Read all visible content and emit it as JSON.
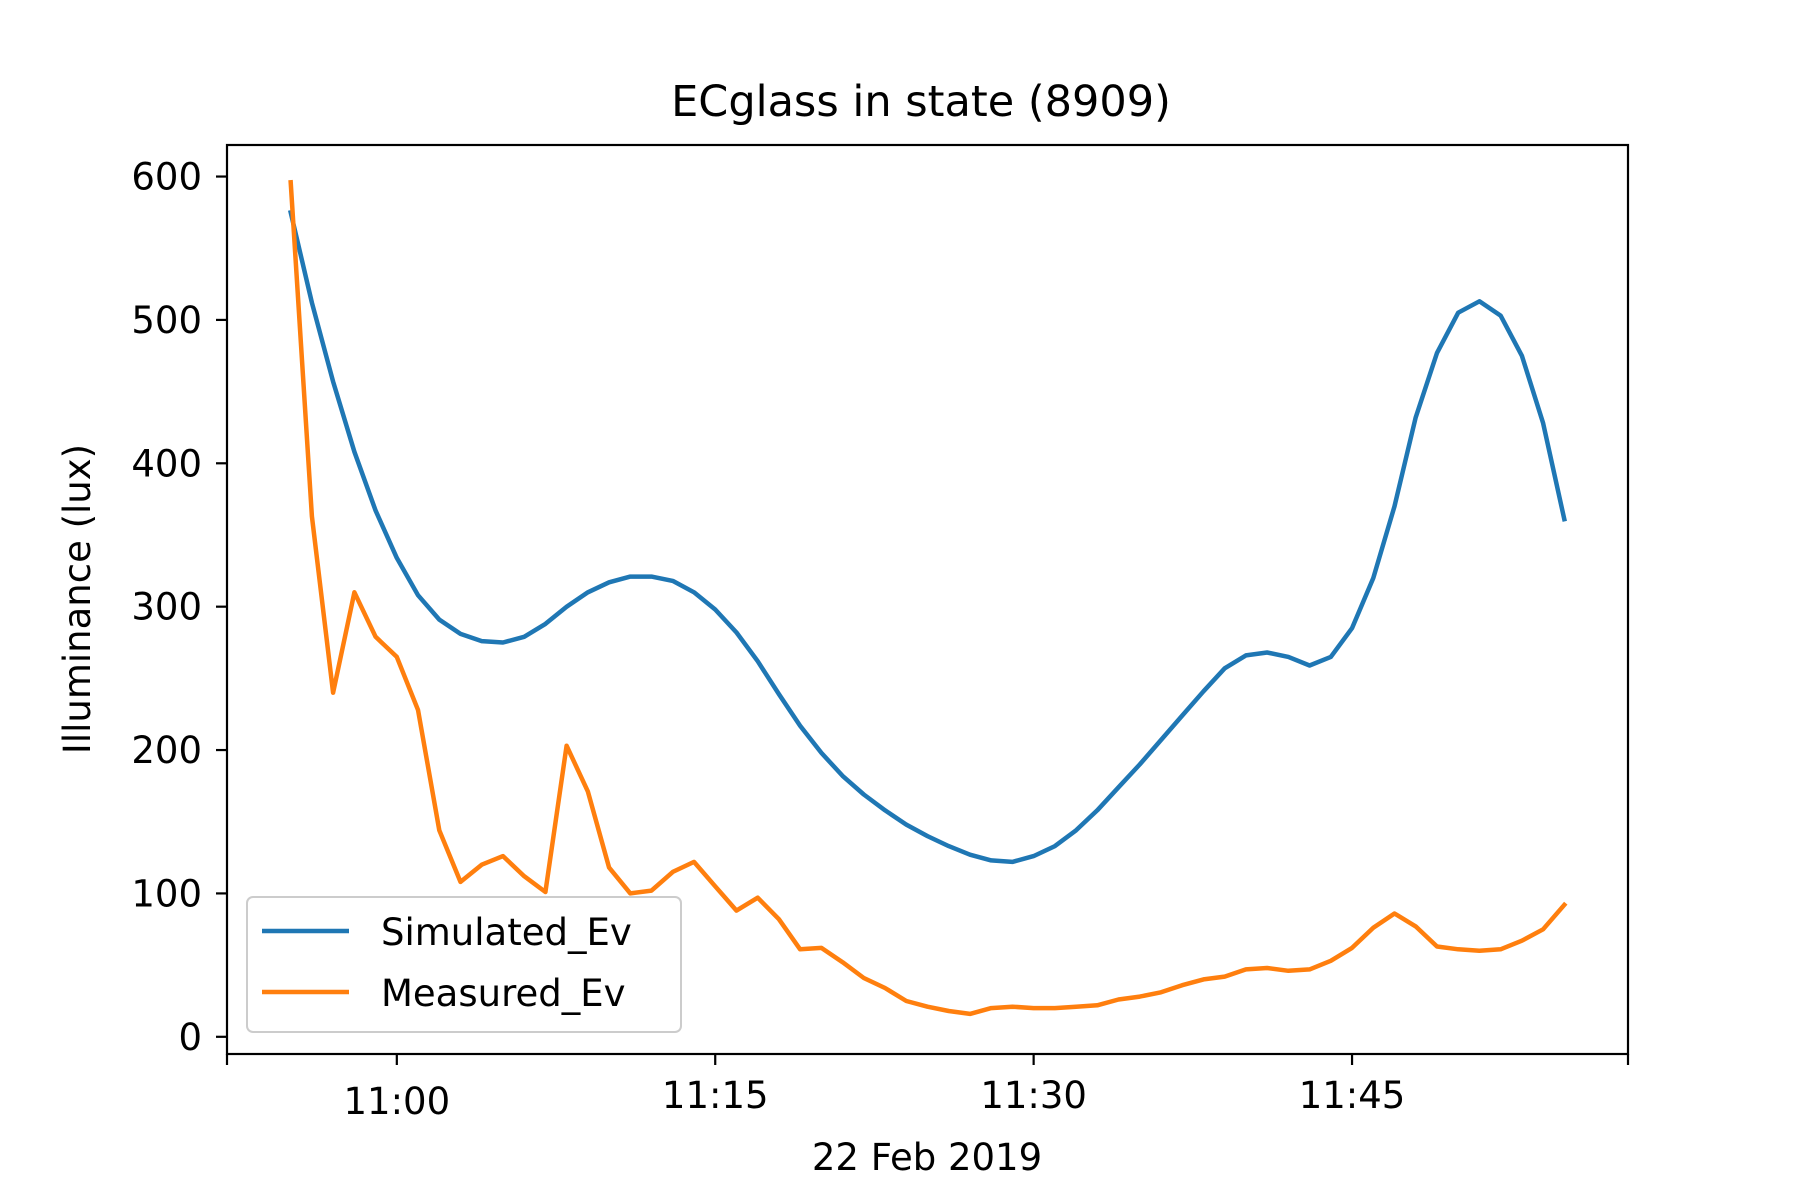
{
  "chart_data": {
    "type": "line",
    "title": "ECglass in state (8909)",
    "xlabel": "22 Feb 2019",
    "ylabel": "Illuminance (lux)",
    "x_ticks": [
      "11:00",
      "11:15",
      "11:30",
      "11:45"
    ],
    "y_ticks": [
      0,
      100,
      200,
      300,
      400,
      500,
      600
    ],
    "ylim": [
      -12,
      622
    ],
    "xlim": [
      "10:52",
      "11:58"
    ],
    "grid": false,
    "legend_position": "lower-left",
    "x": [
      "10:55",
      "10:56",
      "10:57",
      "10:58",
      "10:59",
      "11:00",
      "11:01",
      "11:02",
      "11:03",
      "11:04",
      "11:05",
      "11:06",
      "11:07",
      "11:08",
      "11:09",
      "11:10",
      "11:11",
      "11:12",
      "11:13",
      "11:14",
      "11:15",
      "11:16",
      "11:17",
      "11:18",
      "11:19",
      "11:20",
      "11:21",
      "11:22",
      "11:23",
      "11:24",
      "11:25",
      "11:26",
      "11:27",
      "11:28",
      "11:29",
      "11:30",
      "11:31",
      "11:32",
      "11:33",
      "11:34",
      "11:35",
      "11:36",
      "11:37",
      "11:38",
      "11:39",
      "11:40",
      "11:41",
      "11:42",
      "11:43",
      "11:44",
      "11:45",
      "11:46",
      "11:47",
      "11:48",
      "11:49",
      "11:50",
      "11:51",
      "11:52",
      "11:53",
      "11:54",
      "11:55"
    ],
    "series": [
      {
        "name": "Simulated_Ev",
        "color": "#1f77b4",
        "values": [
          575,
          512,
          457,
          408,
          367,
          334,
          308,
          291,
          281,
          276,
          275,
          279,
          288,
          300,
          310,
          317,
          321,
          321,
          318,
          310,
          298,
          282,
          262,
          239,
          217,
          198,
          182,
          169,
          158,
          148,
          140,
          133,
          127,
          123,
          122,
          126,
          133,
          144,
          158,
          174,
          190,
          207,
          224,
          241,
          257,
          266,
          268,
          265,
          259,
          265,
          285,
          320,
          370,
          432,
          477,
          505,
          513,
          503,
          475,
          428,
          361
        ]
      },
      {
        "name": "Measured_Ev",
        "color": "#ff7f0e",
        "values": [
          596,
          363,
          240,
          310,
          279,
          265,
          228,
          144,
          108,
          120,
          126,
          112,
          101,
          203,
          171,
          118,
          100,
          102,
          115,
          122,
          105,
          88,
          97,
          82,
          61,
          62,
          52,
          41,
          34,
          25,
          21,
          18,
          16,
          20,
          21,
          20,
          20,
          21,
          22,
          26,
          28,
          31,
          36,
          40,
          42,
          47,
          48,
          46,
          47,
          53,
          62,
          76,
          86,
          77,
          63,
          61,
          60,
          61,
          67,
          75,
          92
        ]
      }
    ]
  }
}
